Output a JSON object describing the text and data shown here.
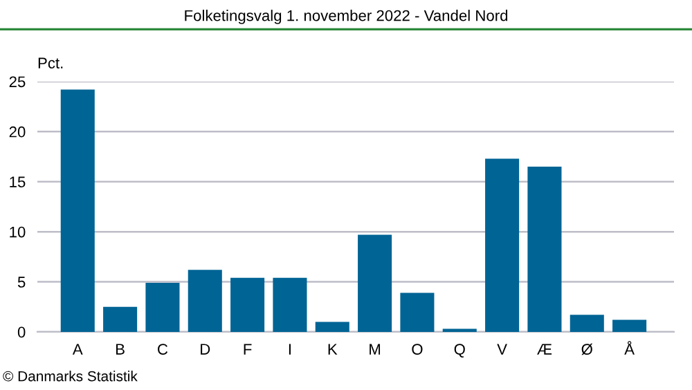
{
  "chart_data": {
    "type": "bar",
    "title": "Folketingsvalg 1. november 2022 - Vandel Nord",
    "ylabel": "Pct.",
    "categories": [
      "A",
      "B",
      "C",
      "D",
      "F",
      "I",
      "K",
      "M",
      "O",
      "Q",
      "V",
      "Æ",
      "Ø",
      "Å"
    ],
    "values": [
      24.2,
      2.5,
      4.9,
      6.2,
      5.4,
      5.4,
      1.0,
      9.7,
      3.9,
      0.3,
      17.3,
      16.5,
      1.7,
      1.2
    ],
    "color": "#006495",
    "ylim": [
      0,
      25
    ],
    "yticks": [
      0,
      5,
      10,
      15,
      20,
      25
    ],
    "grid": "y",
    "annotations": [
      "© Danmarks Statistik"
    ]
  }
}
